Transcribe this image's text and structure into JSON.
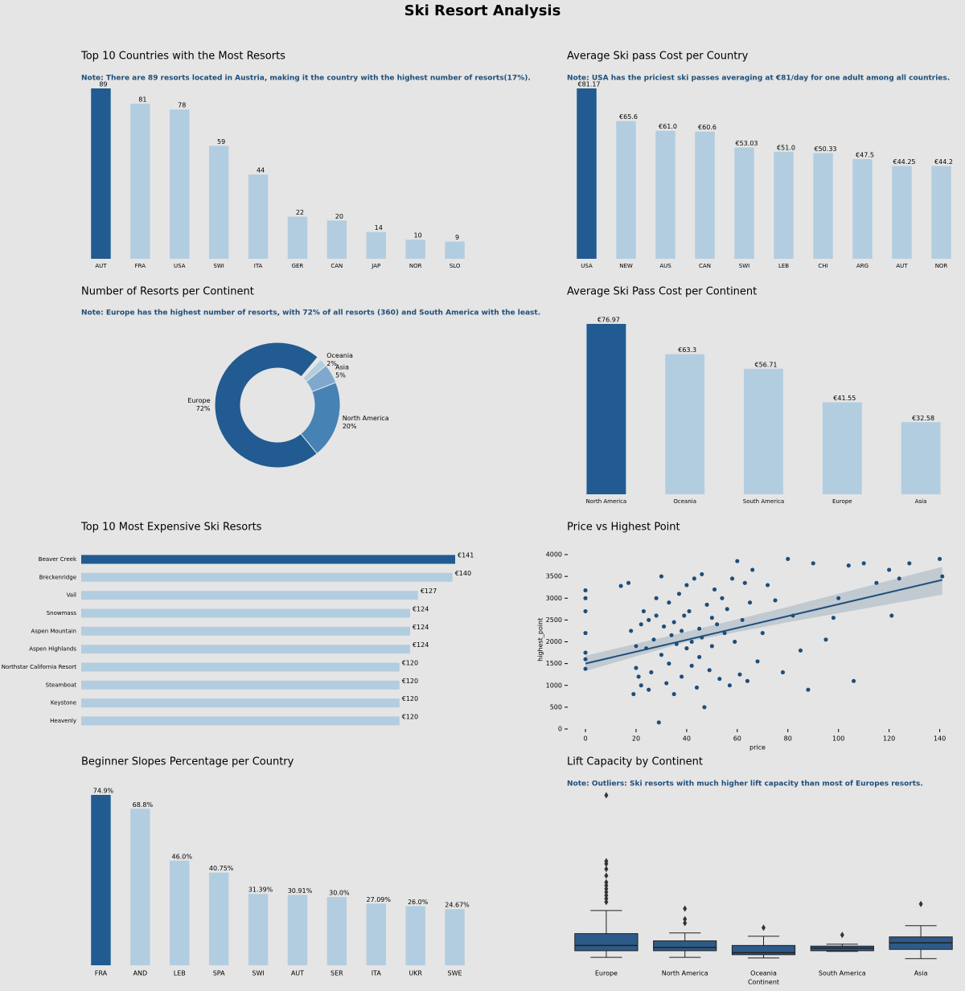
{
  "title": "Ski Resort Analysis",
  "chart_data": [
    {
      "type": "bar",
      "title": "Top 10 Countries with the Most Resorts",
      "note": "Note: There are 89 resorts located in Austria, making it the country with the highest number of resorts(17%).",
      "categories": [
        "AUT",
        "FRA",
        "USA",
        "SWI",
        "ITA",
        "GER",
        "CAN",
        "JAP",
        "NOR",
        "SLO"
      ],
      "values": [
        89,
        81,
        78,
        59,
        44,
        22,
        20,
        14,
        10,
        9
      ],
      "colors": [
        "#215b91",
        "#b3cde0",
        "#b3cde0",
        "#b3cde0",
        "#b3cde0",
        "#b3cde0",
        "#b3cde0",
        "#b3cde0",
        "#b3cde0",
        "#b3cde0"
      ]
    },
    {
      "type": "bar",
      "title": "Average Ski pass Cost per Country",
      "note": "Note: USA has the priciest ski passes averaging at €81/day for one adult among all countries.",
      "categories": [
        "USA",
        "NEW",
        "AUS",
        "CAN",
        "SWI",
        "LEB",
        "CHI",
        "ARG",
        "AUT",
        "NOR"
      ],
      "values": [
        81.17,
        65.6,
        61.0,
        60.6,
        53.03,
        51.0,
        50.33,
        47.5,
        44.25,
        44.2
      ],
      "value_labels": [
        "€81.17",
        "€65.6",
        "€61.0",
        "€60.6",
        "€53.03",
        "€51.0",
        "€50.33",
        "€47.5",
        "€44.25",
        "€44.2"
      ],
      "colors": [
        "#215b91",
        "#b3cde0",
        "#b3cde0",
        "#b3cde0",
        "#b3cde0",
        "#b3cde0",
        "#b3cde0",
        "#b3cde0",
        "#b3cde0",
        "#b3cde0"
      ]
    },
    {
      "type": "pie",
      "title": "Number of Resorts per Continent",
      "note": "Note: Europe has the highest number of resorts, with 72% of all resorts (360) and South America with the least.",
      "categories": [
        "Europe",
        "North America",
        "Asia",
        "Oceania"
      ],
      "values": [
        72,
        20,
        5,
        2
      ],
      "value_labels": [
        "72%",
        "20%",
        "5%",
        "2%"
      ],
      "colors": [
        "#215b91",
        "#4682b4",
        "#7fa8cc",
        "#b3cde0"
      ]
    },
    {
      "type": "bar",
      "title": "Average Ski Pass Cost per Continent",
      "categories": [
        "North America",
        "Oceania",
        "South America",
        "Europe",
        "Asia"
      ],
      "values": [
        76.97,
        63.3,
        56.71,
        41.55,
        32.58
      ],
      "value_labels": [
        "€76.97",
        "€63.3",
        "€56.71",
        "€41.55",
        "€32.58"
      ],
      "colors": [
        "#215b91",
        "#b3cde0",
        "#b3cde0",
        "#b3cde0",
        "#b3cde0"
      ]
    },
    {
      "type": "barh",
      "title": "Top 10 Most Expensive Ski Resorts",
      "categories": [
        "Beaver Creek",
        "Breckenridge",
        "Vail",
        "Snowmass",
        "Aspen Mountain",
        "Aspen Highlands",
        "Northstar California Resort",
        "Steamboat",
        "Keystone",
        "Heavenly"
      ],
      "values": [
        141,
        140,
        127,
        124,
        124,
        124,
        120,
        120,
        120,
        120
      ],
      "value_labels": [
        "€141",
        "€140",
        "€127",
        "€124",
        "€124",
        "€124",
        "€120",
        "€120",
        "€120",
        "€120"
      ],
      "colors": [
        "#215b91",
        "#b3cde0",
        "#b3cde0",
        "#b3cde0",
        "#b3cde0",
        "#b3cde0",
        "#b3cde0",
        "#b3cde0",
        "#b3cde0",
        "#b3cde0"
      ]
    },
    {
      "type": "scatter",
      "title": "Price vs Highest Point",
      "xlabel": "price",
      "ylabel": "highest_point",
      "color": "#1f4e79",
      "x": [
        0,
        0,
        0,
        0,
        0,
        0,
        0,
        14,
        17,
        18,
        19,
        20,
        20,
        21,
        22,
        22,
        23,
        24,
        25,
        25,
        26,
        27,
        28,
        28,
        29,
        30,
        30,
        31,
        32,
        33,
        33,
        34,
        35,
        35,
        36,
        37,
        38,
        38,
        39,
        40,
        40,
        41,
        42,
        42,
        43,
        44,
        45,
        45,
        46,
        46,
        47,
        48,
        49,
        50,
        50,
        51,
        52,
        53,
        54,
        55,
        56,
        57,
        58,
        59,
        60,
        61,
        62,
        63,
        64,
        65,
        66,
        68,
        70,
        72,
        75,
        78,
        80,
        82,
        85,
        88,
        90,
        95,
        98,
        100,
        104,
        106,
        110,
        115,
        120,
        121,
        124,
        128,
        140,
        141
      ],
      "y": [
        1380,
        1600,
        1750,
        2200,
        2700,
        3000,
        3180,
        3280,
        3350,
        2250,
        800,
        1900,
        1400,
        1200,
        2400,
        1000,
        2700,
        1850,
        2500,
        900,
        1300,
        2050,
        2600,
        3000,
        150,
        3500,
        1700,
        2350,
        1050,
        2900,
        1500,
        2150,
        2450,
        800,
        1950,
        3100,
        2250,
        1200,
        2600,
        3300,
        1850,
        2700,
        1450,
        2000,
        3450,
        950,
        2300,
        1650,
        3550,
        2100,
        500,
        2850,
        1350,
        2550,
        1900,
        3200,
        2400,
        1150,
        3000,
        2200,
        2750,
        1000,
        3450,
        2000,
        3850,
        1250,
        2500,
        3350,
        1100,
        2900,
        3650,
        1550,
        2200,
        3300,
        2950,
        1300,
        3900,
        2600,
        1800,
        900,
        3800,
        2050,
        2550,
        3000,
        3750,
        1100,
        3800,
        3350,
        3650,
        2600,
        3450,
        3800,
        3900,
        3500
      ],
      "trend": {
        "x": [
          0,
          141
        ],
        "y": [
          1500,
          3420
        ]
      },
      "trend_band": {
        "x": [
          0,
          40,
          80,
          141
        ],
        "lower": [
          1330,
          2000,
          2450,
          3080
        ],
        "upper": [
          1680,
          2230,
          2800,
          3720
        ]
      },
      "xlim": [
        -7,
        143
      ],
      "ylim": [
        0,
        4100
      ],
      "xticks": [
        0,
        20,
        40,
        60,
        80,
        100,
        120,
        140
      ],
      "yticks": [
        0,
        500,
        1000,
        1500,
        2000,
        2500,
        3000,
        3500,
        4000
      ]
    },
    {
      "type": "bar",
      "title": "Beginner Slopes Percentage per Country",
      "categories": [
        "FRA",
        "AND",
        "LEB",
        "SPA",
        "SWI",
        "AUT",
        "SER",
        "ITA",
        "UKR",
        "SWE"
      ],
      "values": [
        74.9,
        68.8,
        46.0,
        40.75,
        31.39,
        30.91,
        30.0,
        27.09,
        26.0,
        24.67
      ],
      "value_labels": [
        "74.9%",
        "68.8%",
        "46.0%",
        "40.75%",
        "31.39%",
        "30.91%",
        "30.0%",
        "27.09%",
        "26.0%",
        "24.67%"
      ],
      "colors": [
        "#215b91",
        "#b3cde0",
        "#b3cde0",
        "#b3cde0",
        "#b3cde0",
        "#b3cde0",
        "#b3cde0",
        "#b3cde0",
        "#b3cde0",
        "#b3cde0"
      ]
    },
    {
      "type": "box",
      "title": "Lift Capacity by Continent",
      "note": "Note: Outliers: Ski resorts with much higher lift capacity than most of Europes resorts.",
      "xlabel": "Continent",
      "color": "#2d5a88",
      "categories": [
        "Europe",
        "North America",
        "Oceania",
        "South America",
        "Asia"
      ],
      "ylim": [
        0,
        260000
      ],
      "boxes": [
        {
          "min": 6000,
          "q1": 16000,
          "median": 24000,
          "q3": 42000,
          "max": 77000,
          "outliers": [
            90000,
            95000,
            100000,
            105000,
            110000,
            115000,
            120000,
            130000,
            140000,
            148000,
            152000,
            252000
          ]
        },
        {
          "min": 6000,
          "q1": 16000,
          "median": 21000,
          "q3": 31000,
          "max": 43000,
          "outliers": [
            58000,
            64000,
            80000
          ]
        },
        {
          "min": 5000,
          "q1": 10000,
          "median": 13000,
          "q3": 24000,
          "max": 38000,
          "outliers": [
            51000
          ]
        },
        {
          "min": 15000,
          "q1": 16000,
          "median": 20000,
          "q3": 23000,
          "max": 26000,
          "outliers": [
            40000
          ]
        },
        {
          "min": 4000,
          "q1": 18000,
          "median": 28000,
          "q3": 37000,
          "max": 54000,
          "outliers": [
            87000
          ]
        }
      ]
    }
  ]
}
